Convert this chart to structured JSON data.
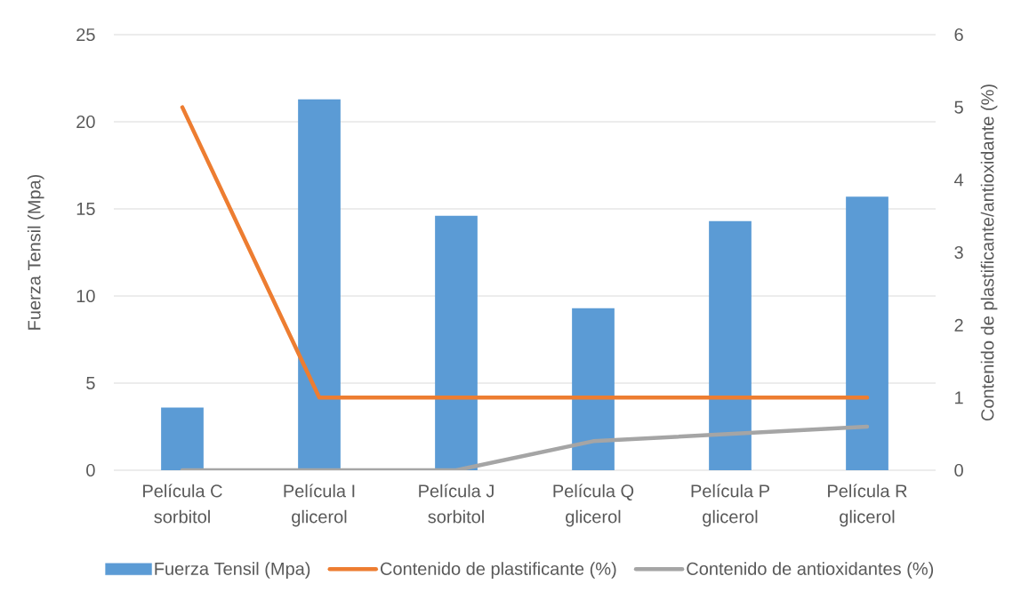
{
  "chart_data": {
    "type": "bar",
    "categories": [
      "Película C sorbitol",
      "Película I glicerol",
      "Película J sorbitol",
      "Película Q glicerol",
      "Película P glicerol",
      "Película R glicerol"
    ],
    "ylabel": "Fuerza Tensil (Mpa)",
    "y2label": "Contenido de plastificante/antioxidante (%)",
    "ylim": [
      0,
      25
    ],
    "yticks": [
      0,
      5,
      10,
      15,
      20,
      25
    ],
    "y2lim": [
      0,
      6
    ],
    "y2ticks": [
      0,
      1,
      2,
      3,
      4,
      5,
      6
    ],
    "grid": "y",
    "legend": "bottom",
    "series": [
      {
        "name": "Fuerza Tensil (Mpa)",
        "color": "#5b9bd5",
        "values": [
          3.6,
          21.3,
          14.6,
          9.3,
          14.3,
          15.7
        ]
      },
      {
        "name": "Contenido de plastificante (%)",
        "type": "line",
        "axis": "y2",
        "color": "#ed7d31",
        "values": [
          5,
          1,
          1,
          1,
          1,
          1
        ]
      },
      {
        "name": "Contenido de antioxidantes (%)",
        "type": "line",
        "axis": "y2",
        "color": "#a5a5a5",
        "values": [
          0,
          0,
          0,
          0.4,
          0.5,
          0.6
        ]
      }
    ]
  }
}
